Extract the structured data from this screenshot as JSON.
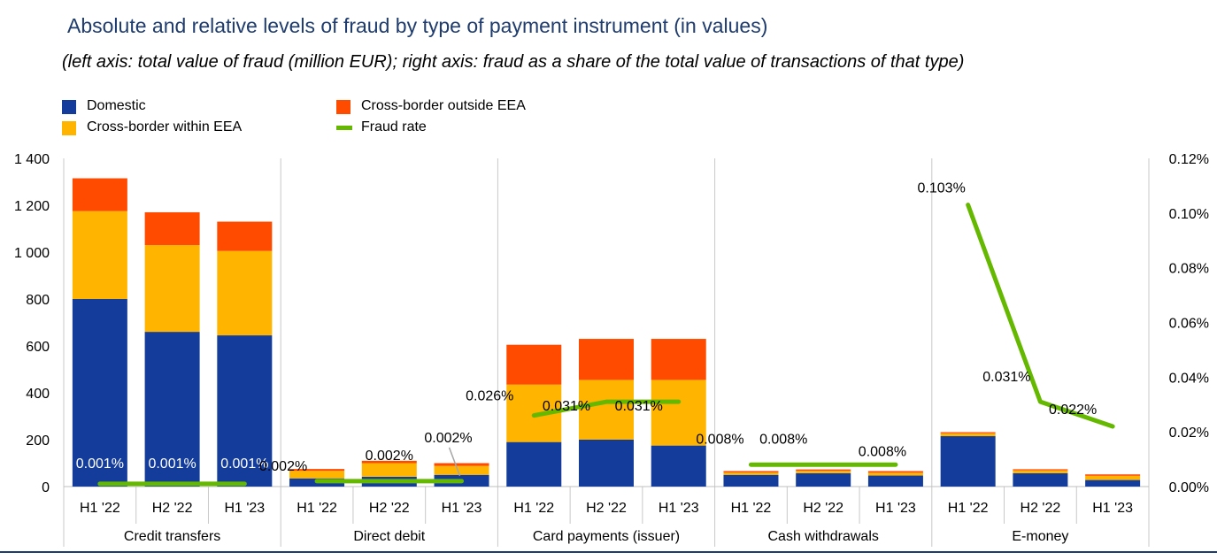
{
  "title": "Absolute and relative levels of fraud by type of payment instrument (in values)",
  "subtitle": "(left axis: total value of fraud (million EUR); right axis: fraud as a share of the total value of transactions of that type)",
  "colors": {
    "domestic": "#143c9b",
    "within_eea": "#ffb400",
    "outside_eea": "#ff4b00",
    "fraud_rate": "#65b800",
    "title": "#1f3c6e",
    "bottom_rule": "#1f3c6e"
  },
  "chart_data": {
    "type": "bar",
    "stacked": true,
    "groups": [
      {
        "label": "Credit transfers",
        "periods": [
          "H1 '22",
          "H2 '22",
          "H1 '23"
        ]
      },
      {
        "label": "Direct debit",
        "periods": [
          "H1 '22",
          "H2 '22",
          "H1 '23"
        ]
      },
      {
        "label": "Card payments (issuer)",
        "periods": [
          "H1 '22",
          "H2 '22",
          "H1 '23"
        ]
      },
      {
        "label": "Cash withdrawals",
        "periods": [
          "H1 '22",
          "H2 '22",
          "H1 '23"
        ]
      },
      {
        "label": "E-money",
        "periods": [
          "H1 '22",
          "H2 '22",
          "H1 '23"
        ]
      }
    ],
    "series": [
      {
        "name": "Domestic",
        "color_key": "domestic",
        "values": [
          800,
          660,
          645,
          35,
          42,
          50,
          190,
          200,
          175,
          50,
          57,
          47,
          215,
          57,
          28
        ]
      },
      {
        "name": "Cross-border within EEA",
        "color_key": "within_eea",
        "values": [
          375,
          370,
          360,
          32,
          58,
          38,
          245,
          255,
          280,
          10,
          10,
          12,
          12,
          12,
          18
        ]
      },
      {
        "name": "Cross-border outside EEA",
        "color_key": "outside_eea",
        "values": [
          140,
          140,
          125,
          8,
          10,
          12,
          170,
          175,
          175,
          6,
          6,
          7,
          5,
          5,
          6
        ]
      }
    ],
    "line_series": {
      "name": "Fraud rate",
      "color_key": "fraud_rate",
      "axis": "right",
      "values": [
        0.001,
        0.001,
        0.001,
        0.002,
        0.002,
        0.002,
        0.026,
        0.031,
        0.031,
        0.008,
        0.008,
        0.008,
        0.103,
        0.031,
        0.022
      ],
      "labels": [
        "0.001%",
        "0.001%",
        "0.001%",
        "0.002%",
        "0.002%",
        "0.002%",
        "0.026%",
        "0.031%",
        "0.031%",
        "0.008%",
        "0.008%",
        "0.008%",
        "0.103%",
        "0.031%",
        "0.022%"
      ]
    },
    "left_axis": {
      "ylim": [
        0,
        1400
      ],
      "ticks": [
        0,
        200,
        400,
        600,
        800,
        1000,
        1200,
        1400
      ],
      "tick_labels": [
        "0",
        "200",
        "400",
        "600",
        "800",
        "1 000",
        "1 200",
        "1 400"
      ]
    },
    "right_axis": {
      "ylim": [
        0,
        0.12
      ],
      "ticks": [
        0,
        0.02,
        0.04,
        0.06,
        0.08,
        0.1,
        0.12
      ],
      "tick_labels": [
        "0.00%",
        "0.02%",
        "0.04%",
        "0.06%",
        "0.08%",
        "0.10%",
        "0.12%"
      ]
    },
    "grid": "vertical separators",
    "legend": "top-left"
  }
}
